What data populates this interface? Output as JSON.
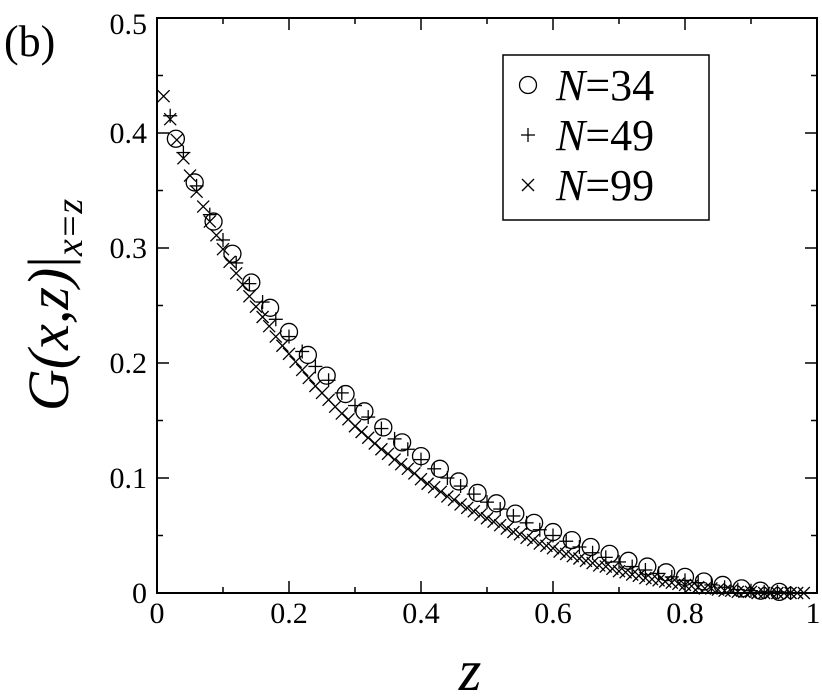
{
  "panel_label": "(b)",
  "chart_data": {
    "type": "scatter",
    "xlabel": "z",
    "ylabel": "G(x,z)|x=z",
    "ylabel_parts": {
      "func": "G",
      "args": "(x,z)",
      "bar": "|",
      "sub": "x=z"
    },
    "xlim": [
      0,
      1
    ],
    "ylim": [
      0,
      0.5
    ],
    "xticks": [
      0,
      0.2,
      0.4,
      0.6,
      0.8,
      1
    ],
    "xtick_labels": [
      "0",
      "0.2",
      "0.4",
      "0.6",
      "0.8",
      "1"
    ],
    "yticks": [
      0,
      0.1,
      0.2,
      0.3,
      0.4,
      0.5
    ],
    "ytick_labels": [
      "0",
      "0.1",
      "0.2",
      "0.3",
      "0.4",
      "0.5"
    ],
    "legend_position": "top-right",
    "series": [
      {
        "name": "N=34",
        "name_italic": "N",
        "name_rest": "=34",
        "marker": "circle",
        "x": [
          0.0286,
          0.0571,
          0.0857,
          0.1143,
          0.1429,
          0.1714,
          0.2,
          0.2286,
          0.2571,
          0.2857,
          0.3143,
          0.3429,
          0.3714,
          0.4,
          0.4286,
          0.4571,
          0.4857,
          0.5143,
          0.5429,
          0.5714,
          0.6,
          0.6286,
          0.6571,
          0.6857,
          0.7143,
          0.7429,
          0.7714,
          0.8,
          0.8286,
          0.8571,
          0.8857,
          0.9143,
          0.9429
        ],
        "y": [
          0.395,
          0.357,
          0.323,
          0.295,
          0.27,
          0.248,
          0.227,
          0.207,
          0.189,
          0.173,
          0.158,
          0.144,
          0.131,
          0.119,
          0.108,
          0.097,
          0.087,
          0.078,
          0.069,
          0.061,
          0.053,
          0.046,
          0.04,
          0.034,
          0.028,
          0.023,
          0.018,
          0.014,
          0.01,
          0.007,
          0.004,
          0.002,
          0.001
        ]
      },
      {
        "name": "N=49",
        "name_italic": "N",
        "name_rest": "=49",
        "marker": "plus",
        "x": [
          0.02,
          0.04,
          0.06,
          0.08,
          0.1,
          0.12,
          0.14,
          0.16,
          0.18,
          0.2,
          0.22,
          0.24,
          0.26,
          0.28,
          0.3,
          0.32,
          0.34,
          0.36,
          0.38,
          0.4,
          0.42,
          0.44,
          0.46,
          0.48,
          0.5,
          0.52,
          0.54,
          0.56,
          0.58,
          0.6,
          0.62,
          0.64,
          0.66,
          0.68,
          0.7,
          0.72,
          0.74,
          0.76,
          0.78,
          0.8,
          0.82,
          0.84,
          0.86,
          0.88,
          0.9,
          0.92,
          0.94,
          0.96
        ],
        "y": [
          0.415,
          0.383,
          0.354,
          0.329,
          0.307,
          0.287,
          0.269,
          0.253,
          0.238,
          0.223,
          0.21,
          0.197,
          0.185,
          0.174,
          0.163,
          0.153,
          0.143,
          0.134,
          0.125,
          0.116,
          0.108,
          0.1,
          0.093,
          0.086,
          0.079,
          0.073,
          0.067,
          0.061,
          0.055,
          0.05,
          0.045,
          0.04,
          0.035,
          0.031,
          0.027,
          0.023,
          0.02,
          0.017,
          0.014,
          0.011,
          0.009,
          0.007,
          0.005,
          0.003,
          0.002,
          0.001,
          0.001,
          0.0
        ]
      },
      {
        "name": "N=99",
        "name_italic": "N",
        "name_rest": "=99",
        "marker": "cross",
        "x": [
          0.01,
          0.02,
          0.03,
          0.04,
          0.05,
          0.06,
          0.07,
          0.08,
          0.09,
          0.1,
          0.11,
          0.12,
          0.13,
          0.14,
          0.15,
          0.16,
          0.17,
          0.18,
          0.19,
          0.2,
          0.21,
          0.22,
          0.23,
          0.24,
          0.25,
          0.26,
          0.27,
          0.28,
          0.29,
          0.3,
          0.31,
          0.32,
          0.33,
          0.34,
          0.35,
          0.36,
          0.37,
          0.38,
          0.39,
          0.4,
          0.41,
          0.42,
          0.43,
          0.44,
          0.45,
          0.46,
          0.47,
          0.48,
          0.49,
          0.5,
          0.51,
          0.52,
          0.53,
          0.54,
          0.55,
          0.56,
          0.57,
          0.58,
          0.59,
          0.6,
          0.61,
          0.62,
          0.63,
          0.64,
          0.65,
          0.66,
          0.67,
          0.68,
          0.69,
          0.7,
          0.71,
          0.72,
          0.73,
          0.74,
          0.75,
          0.76,
          0.77,
          0.78,
          0.79,
          0.8,
          0.81,
          0.82,
          0.83,
          0.84,
          0.85,
          0.86,
          0.87,
          0.88,
          0.89,
          0.9,
          0.91,
          0.92,
          0.93,
          0.94,
          0.95,
          0.96,
          0.97,
          0.98
        ],
        "y": [
          0.432,
          0.412,
          0.394,
          0.378,
          0.363,
          0.349,
          0.336,
          0.323,
          0.311,
          0.299,
          0.288,
          0.278,
          0.268,
          0.258,
          0.249,
          0.24,
          0.232,
          0.223,
          0.215,
          0.208,
          0.201,
          0.194,
          0.187,
          0.18,
          0.174,
          0.168,
          0.162,
          0.156,
          0.151,
          0.145,
          0.14,
          0.135,
          0.13,
          0.125,
          0.121,
          0.116,
          0.112,
          0.108,
          0.104,
          0.099,
          0.095,
          0.092,
          0.088,
          0.084,
          0.081,
          0.077,
          0.074,
          0.071,
          0.068,
          0.065,
          0.062,
          0.059,
          0.056,
          0.053,
          0.051,
          0.048,
          0.046,
          0.043,
          0.041,
          0.039,
          0.036,
          0.034,
          0.032,
          0.03,
          0.028,
          0.026,
          0.024,
          0.023,
          0.021,
          0.019,
          0.018,
          0.016,
          0.015,
          0.013,
          0.012,
          0.011,
          0.01,
          0.009,
          0.008,
          0.007,
          0.006,
          0.005,
          0.004,
          0.004,
          0.003,
          0.002,
          0.002,
          0.001,
          0.001,
          0.001,
          0.0,
          0.0,
          0.0,
          0.0,
          0.0,
          0.0,
          0.0,
          0.0
        ]
      }
    ]
  }
}
